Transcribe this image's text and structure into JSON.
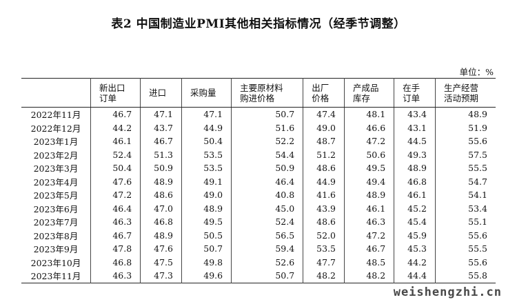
{
  "title": "表2 中国制造业PMI其他相关指标情况（经季节调整）",
  "unit": "单位：%",
  "columns": [
    {
      "line1": "",
      "line2": ""
    },
    {
      "line1": "新出口",
      "line2": "订单"
    },
    {
      "line1": "进口",
      "line2": ""
    },
    {
      "line1": "采购量",
      "line2": ""
    },
    {
      "line1": "主要原材料",
      "line2": "购进价格"
    },
    {
      "line1": "出厂",
      "line2": "价格"
    },
    {
      "line1": "产成品",
      "line2": "库存"
    },
    {
      "line1": "在手",
      "line2": "订单"
    },
    {
      "line1": "生产经营",
      "line2": "活动预期"
    }
  ],
  "rows": [
    [
      "2022年11月",
      "46.7",
      "47.1",
      "47.1",
      "50.7",
      "47.4",
      "48.1",
      "43.4",
      "48.9"
    ],
    [
      "2022年12月",
      "44.2",
      "43.7",
      "44.9",
      "51.6",
      "49.0",
      "46.6",
      "43.1",
      "51.9"
    ],
    [
      "2023年1月",
      "46.1",
      "46.7",
      "50.4",
      "52.2",
      "48.7",
      "47.2",
      "44.5",
      "55.6"
    ],
    [
      "2023年2月",
      "52.4",
      "51.3",
      "53.5",
      "54.4",
      "51.2",
      "50.6",
      "49.3",
      "57.5"
    ],
    [
      "2023年3月",
      "50.4",
      "50.9",
      "53.5",
      "50.9",
      "48.6",
      "49.5",
      "48.9",
      "55.5"
    ],
    [
      "2023年4月",
      "47.6",
      "48.9",
      "49.1",
      "46.4",
      "44.9",
      "49.4",
      "46.8",
      "54.7"
    ],
    [
      "2023年5月",
      "47.2",
      "48.6",
      "49.0",
      "40.8",
      "41.6",
      "48.9",
      "46.1",
      "54.1"
    ],
    [
      "2023年6月",
      "46.4",
      "47.0",
      "48.9",
      "45.0",
      "43.9",
      "46.1",
      "45.2",
      "53.4"
    ],
    [
      "2023年7月",
      "46.3",
      "46.8",
      "49.5",
      "52.4",
      "48.6",
      "46.3",
      "45.4",
      "55.1"
    ],
    [
      "2023年8月",
      "46.7",
      "48.9",
      "50.5",
      "56.5",
      "52.0",
      "47.2",
      "45.9",
      "55.6"
    ],
    [
      "2023年9月",
      "47.8",
      "47.6",
      "50.7",
      "59.4",
      "53.5",
      "46.7",
      "45.3",
      "55.5"
    ],
    [
      "2023年10月",
      "46.8",
      "47.5",
      "49.8",
      "52.6",
      "47.7",
      "48.5",
      "44.2",
      "55.6"
    ],
    [
      "2023年11月",
      "46.3",
      "47.3",
      "49.6",
      "50.7",
      "48.2",
      "48.2",
      "44.4",
      "55.8"
    ]
  ],
  "watermark": "weishengzhi.cn"
}
